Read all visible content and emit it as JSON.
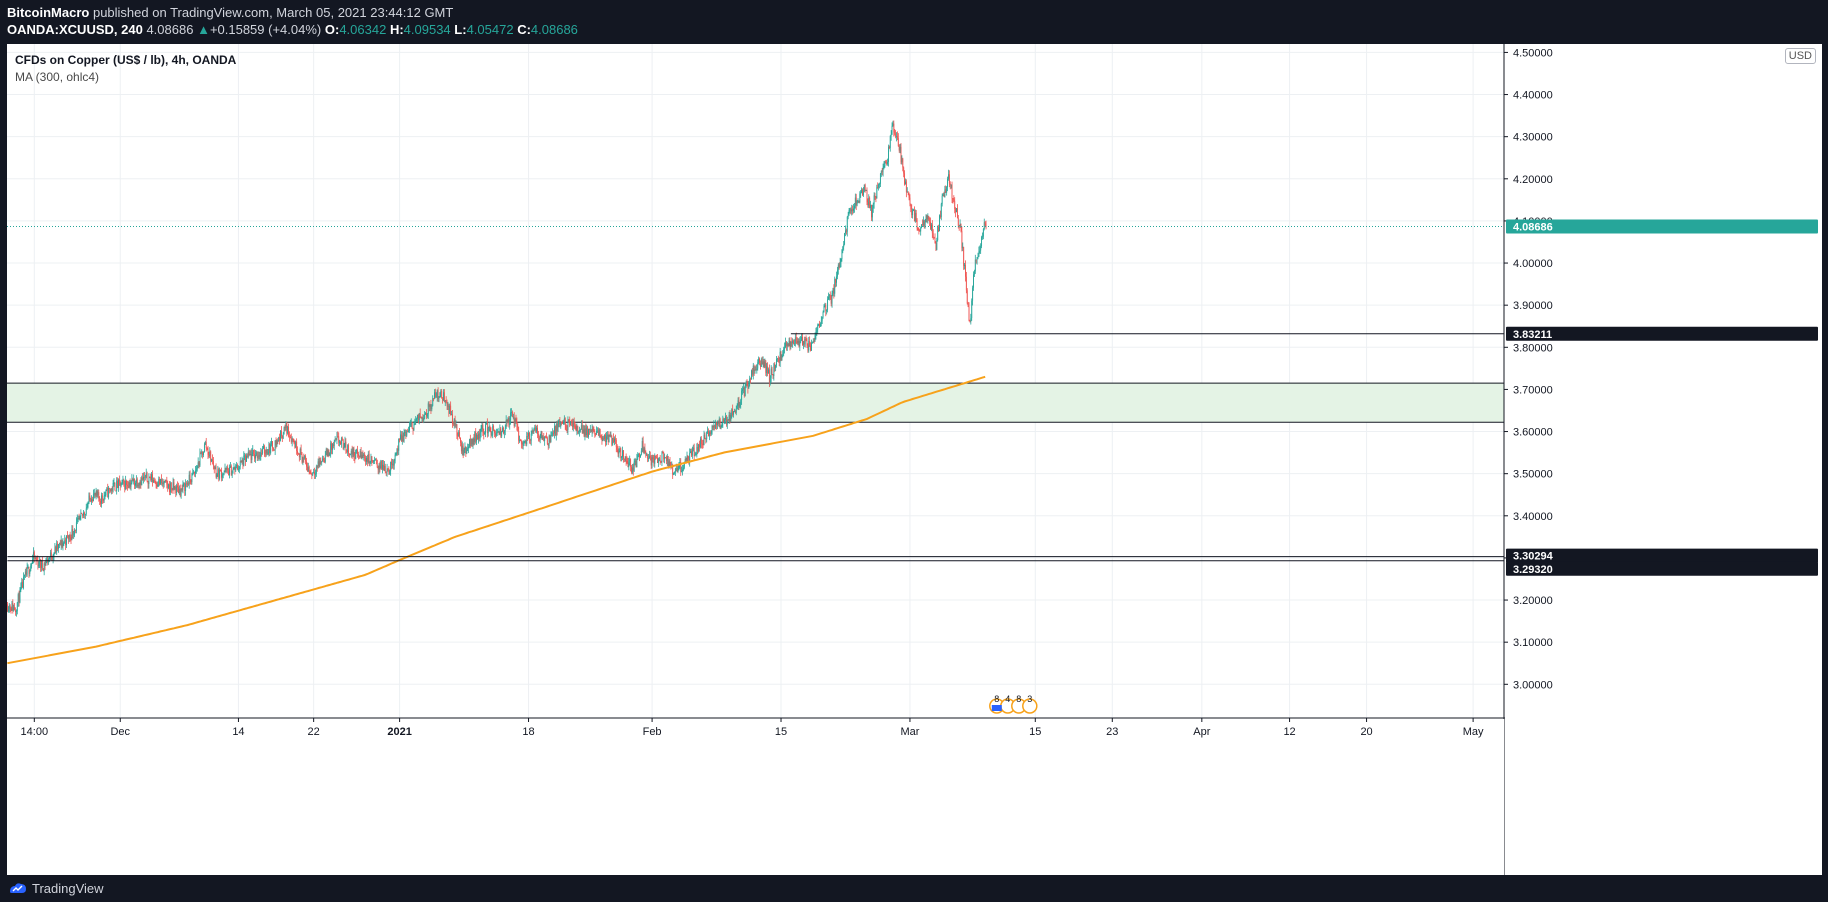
{
  "header": {
    "author": "BitcoinMacro",
    "published": "published on TradingView.com, March 05, 2021 23:44:12 GMT",
    "symbol": "OANDA:XCUUSD, 240",
    "last": "4.08686",
    "arrow": "▲",
    "change": "+0.15859 (+4.04%)",
    "o_label": "O:",
    "o": "4.06342",
    "h_label": "H:",
    "h": "4.09534",
    "l_label": "L:",
    "l": "4.05472",
    "c_label": "C:",
    "c": "4.08686"
  },
  "legend": {
    "title": "CFDs on Copper (US$ / lb), 4h, OANDA",
    "indicator": "MA (300, ohlc4)"
  },
  "currency": "USD",
  "footer": {
    "brand": "TradingView"
  },
  "colors": {
    "up": "#26a69a",
    "down": "#ef5350",
    "ma": "#f7a21b",
    "zone": "#e4f3e5",
    "price_line": "#26a69a"
  },
  "chart_data": {
    "type": "line",
    "ylim": [
      2.92,
      4.52
    ],
    "y_ticks": [
      "3.00000",
      "3.10000",
      "3.20000",
      "3.30000",
      "3.40000",
      "3.50000",
      "3.60000",
      "3.70000",
      "3.80000",
      "3.90000",
      "4.00000",
      "4.10000",
      "4.20000",
      "4.30000",
      "4.40000",
      "4.50000"
    ],
    "x_ticks": [
      {
        "label": "14:00",
        "bar": 30,
        "bold": false
      },
      {
        "label": "Dec",
        "bar": 126,
        "bold": false
      },
      {
        "label": "14",
        "bar": 258,
        "bold": false
      },
      {
        "label": "22",
        "bar": 342,
        "bold": false
      },
      {
        "label": "2021",
        "bar": 438,
        "bold": true
      },
      {
        "label": "18",
        "bar": 582,
        "bold": false
      },
      {
        "label": "Feb",
        "bar": 720,
        "bold": false
      },
      {
        "label": "15",
        "bar": 864,
        "bold": false
      },
      {
        "label": "Mar",
        "bar": 1008,
        "bold": false
      },
      {
        "label": "15",
        "bar": 1148,
        "bold": false
      },
      {
        "label": "23",
        "bar": 1234,
        "bold": false
      },
      {
        "label": "Apr",
        "bar": 1334,
        "bold": false
      },
      {
        "label": "12",
        "bar": 1432,
        "bold": false
      },
      {
        "label": "20",
        "bar": 1518,
        "bold": false
      },
      {
        "label": "May",
        "bar": 1637,
        "bold": false
      }
    ],
    "price_anchors": [
      [
        0,
        3.19
      ],
      [
        10,
        3.18
      ],
      [
        20,
        3.25
      ],
      [
        30,
        3.3
      ],
      [
        40,
        3.28
      ],
      [
        55,
        3.32
      ],
      [
        70,
        3.35
      ],
      [
        85,
        3.4
      ],
      [
        95,
        3.45
      ],
      [
        105,
        3.44
      ],
      [
        120,
        3.47
      ],
      [
        140,
        3.48
      ],
      [
        160,
        3.49
      ],
      [
        180,
        3.47
      ],
      [
        195,
        3.46
      ],
      [
        210,
        3.5
      ],
      [
        222,
        3.57
      ],
      [
        235,
        3.5
      ],
      [
        255,
        3.51
      ],
      [
        270,
        3.54
      ],
      [
        285,
        3.55
      ],
      [
        300,
        3.57
      ],
      [
        312,
        3.61
      ],
      [
        325,
        3.56
      ],
      [
        340,
        3.5
      ],
      [
        355,
        3.54
      ],
      [
        370,
        3.58
      ],
      [
        385,
        3.55
      ],
      [
        400,
        3.54
      ],
      [
        415,
        3.52
      ],
      [
        428,
        3.51
      ],
      [
        440,
        3.58
      ],
      [
        455,
        3.62
      ],
      [
        470,
        3.65
      ],
      [
        480,
        3.69
      ],
      [
        490,
        3.68
      ],
      [
        500,
        3.62
      ],
      [
        510,
        3.55
      ],
      [
        520,
        3.58
      ],
      [
        535,
        3.61
      ],
      [
        550,
        3.59
      ],
      [
        565,
        3.64
      ],
      [
        575,
        3.57
      ],
      [
        590,
        3.6
      ],
      [
        605,
        3.58
      ],
      [
        620,
        3.62
      ],
      [
        635,
        3.61
      ],
      [
        650,
        3.6
      ],
      [
        665,
        3.59
      ],
      [
        675,
        3.58
      ],
      [
        690,
        3.54
      ],
      [
        700,
        3.51
      ],
      [
        710,
        3.57
      ],
      [
        720,
        3.53
      ],
      [
        735,
        3.54
      ],
      [
        745,
        3.5
      ],
      [
        760,
        3.53
      ],
      [
        775,
        3.57
      ],
      [
        790,
        3.61
      ],
      [
        805,
        3.63
      ],
      [
        815,
        3.66
      ],
      [
        825,
        3.7
      ],
      [
        835,
        3.75
      ],
      [
        845,
        3.77
      ],
      [
        852,
        3.73
      ],
      [
        860,
        3.76
      ],
      [
        870,
        3.8
      ],
      [
        880,
        3.82
      ],
      [
        890,
        3.81
      ],
      [
        897,
        3.8
      ],
      [
        905,
        3.84
      ],
      [
        912,
        3.89
      ],
      [
        922,
        3.92
      ],
      [
        932,
        4.02
      ],
      [
        940,
        4.11
      ],
      [
        950,
        4.15
      ],
      [
        958,
        4.18
      ],
      [
        966,
        4.12
      ],
      [
        975,
        4.2
      ],
      [
        983,
        4.24
      ],
      [
        990,
        4.33
      ],
      [
        997,
        4.28
      ],
      [
        1004,
        4.18
      ],
      [
        1012,
        4.12
      ],
      [
        1020,
        4.08
      ],
      [
        1030,
        4.11
      ],
      [
        1038,
        4.04
      ],
      [
        1045,
        4.15
      ],
      [
        1052,
        4.2
      ],
      [
        1060,
        4.13
      ],
      [
        1066,
        4.07
      ],
      [
        1072,
        3.94
      ],
      [
        1076,
        3.85
      ],
      [
        1080,
        3.98
      ],
      [
        1086,
        4.03
      ],
      [
        1092,
        4.09
      ]
    ],
    "ma_anchors": [
      [
        0,
        3.05
      ],
      [
        100,
        3.09
      ],
      [
        200,
        3.14
      ],
      [
        300,
        3.2
      ],
      [
        400,
        3.26
      ],
      [
        438,
        3.295
      ],
      [
        500,
        3.35
      ],
      [
        600,
        3.42
      ],
      [
        720,
        3.505
      ],
      [
        800,
        3.55
      ],
      [
        900,
        3.59
      ],
      [
        960,
        3.63
      ],
      [
        1000,
        3.67
      ],
      [
        1092,
        3.73
      ]
    ],
    "current_price": {
      "label": "4.08686",
      "value": 4.08686
    },
    "levels": [
      {
        "label": "3.83211",
        "value": 3.83211,
        "from_bar": 875
      },
      {
        "label": "3.30294",
        "value": 3.30294,
        "from_bar": 0
      },
      {
        "label": "3.29320",
        "value": 3.2932,
        "from_bar": 0
      }
    ],
    "zone": {
      "top": 3.715,
      "bottom": 3.622
    },
    "events_marker": {
      "bar": 1105,
      "labels": [
        "8",
        "4",
        "8",
        "3"
      ]
    },
    "bars_total": 1094,
    "bars_visible": 1672
  }
}
